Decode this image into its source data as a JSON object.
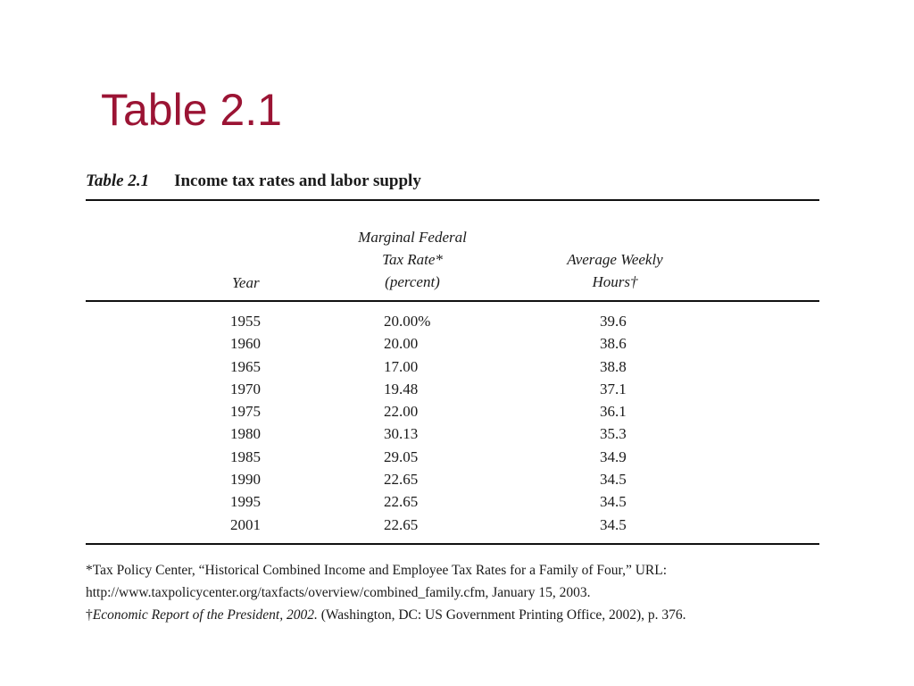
{
  "slide_title": "Table 2.1",
  "table": {
    "caption_number": "Table 2.1",
    "caption_text": "Income tax rates and labor supply",
    "headers": {
      "year": "Year",
      "rate_line1": "Marginal Federal",
      "rate_line2": "Tax Rate*",
      "rate_line3": "(percent)",
      "hours_line1": "Average Weekly",
      "hours_line2": "Hours†"
    },
    "rows": [
      {
        "year": "1955",
        "rate": "20.00%",
        "hours": "39.6"
      },
      {
        "year": "1960",
        "rate": "20.00",
        "hours": "38.6"
      },
      {
        "year": "1965",
        "rate": "17.00",
        "hours": "38.8"
      },
      {
        "year": "1970",
        "rate": "19.48",
        "hours": "37.1"
      },
      {
        "year": "1975",
        "rate": "22.00",
        "hours": "36.1"
      },
      {
        "year": "1980",
        "rate": "30.13",
        "hours": "35.3"
      },
      {
        "year": "1985",
        "rate": "29.05",
        "hours": "34.9"
      },
      {
        "year": "1990",
        "rate": "22.65",
        "hours": "34.5"
      },
      {
        "year": "1995",
        "rate": "22.65",
        "hours": "34.5"
      },
      {
        "year": "2001",
        "rate": "22.65",
        "hours": "34.5"
      }
    ],
    "notes": {
      "note1_line1": "*Tax Policy Center, “Historical Combined Income and Employee Tax Rates for a Family of Four,” URL:",
      "note1_line2": "http://www.taxpolicycenter.org/taxfacts/overview/combined_family.cfm, January 15, 2003.",
      "note2_prefix": "†",
      "note2_source": "Economic Report of the President, 2002.",
      "note2_rest": " (Washington, DC: US Government Printing Office, 2002), p. 376."
    }
  }
}
